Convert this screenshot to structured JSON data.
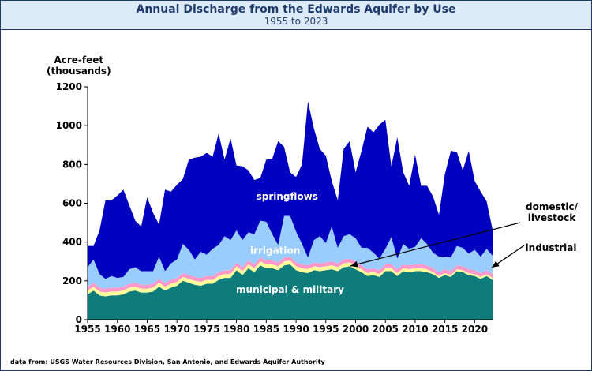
{
  "title": "Annual Discharge from the Edwards Aquifer by Use",
  "subtitle": "1955 to 2023",
  "source_note": "data from:  USGS Water Resources Division, San Antonio, and Edwards Aquifer Authority",
  "colors": {
    "municipal": "#0e7c7b",
    "industrial": "#ffff99",
    "domestic": "#ff99cc",
    "irrigation": "#99ccff",
    "springflows": "#0000c0",
    "frame": "#1f3a6b",
    "header_bg": "#dcebf7"
  },
  "chart_data": {
    "type": "area",
    "stacked": true,
    "ylabel_lines": [
      "Acre-feet",
      "(thousands)"
    ],
    "ylim": [
      0,
      1200
    ],
    "xlim": [
      1955,
      2023
    ],
    "yticks": [
      0,
      200,
      400,
      600,
      800,
      1000,
      1200
    ],
    "xticks": [
      1955,
      1960,
      1965,
      1970,
      1975,
      1980,
      1985,
      1990,
      1995,
      2000,
      2005,
      2010,
      2015,
      2020
    ],
    "grid": false,
    "years": [
      1955,
      1956,
      1957,
      1958,
      1959,
      1960,
      1961,
      1962,
      1963,
      1964,
      1965,
      1966,
      1967,
      1968,
      1969,
      1970,
      1971,
      1972,
      1973,
      1974,
      1975,
      1976,
      1977,
      1978,
      1979,
      1980,
      1981,
      1982,
      1983,
      1984,
      1985,
      1986,
      1987,
      1988,
      1989,
      1990,
      1991,
      1992,
      1993,
      1994,
      1995,
      1996,
      1997,
      1998,
      1999,
      2000,
      2001,
      2002,
      2003,
      2004,
      2005,
      2006,
      2007,
      2008,
      2009,
      2010,
      2011,
      2012,
      2013,
      2014,
      2015,
      2016,
      2017,
      2018,
      2019,
      2020,
      2021,
      2022,
      2023
    ],
    "series": [
      {
        "key": "municipal",
        "name": "municipal & military",
        "values": [
          130,
          150,
          125,
          120,
          125,
          125,
          130,
          145,
          150,
          140,
          140,
          145,
          170,
          150,
          165,
          175,
          200,
          190,
          180,
          175,
          185,
          185,
          205,
          215,
          215,
          255,
          230,
          265,
          245,
          280,
          265,
          265,
          255,
          280,
          285,
          255,
          245,
          240,
          255,
          250,
          255,
          260,
          250,
          270,
          275,
          260,
          245,
          225,
          230,
          220,
          250,
          250,
          225,
          250,
          245,
          250,
          250,
          245,
          235,
          215,
          230,
          220,
          250,
          245,
          230,
          225,
          210,
          225,
          205
        ]
      },
      {
        "key": "industrial",
        "name": "industrial",
        "values": [
          20,
          20,
          20,
          20,
          20,
          20,
          20,
          20,
          20,
          20,
          20,
          20,
          20,
          20,
          20,
          20,
          20,
          20,
          20,
          20,
          20,
          20,
          20,
          20,
          20,
          20,
          20,
          20,
          20,
          20,
          20,
          20,
          20,
          20,
          20,
          20,
          20,
          20,
          20,
          20,
          20,
          20,
          20,
          20,
          20,
          20,
          15,
          15,
          15,
          15,
          15,
          15,
          15,
          15,
          15,
          15,
          15,
          15,
          10,
          10,
          10,
          10,
          10,
          10,
          10,
          10,
          10,
          10,
          10
        ]
      },
      {
        "key": "domestic",
        "name": "domestic/ livestock",
        "values": [
          20,
          20,
          20,
          20,
          20,
          20,
          20,
          20,
          20,
          20,
          20,
          20,
          20,
          20,
          20,
          20,
          20,
          20,
          20,
          20,
          20,
          20,
          20,
          20,
          20,
          20,
          20,
          20,
          20,
          20,
          20,
          20,
          20,
          20,
          20,
          20,
          20,
          20,
          20,
          20,
          20,
          20,
          20,
          20,
          20,
          20,
          20,
          20,
          20,
          20,
          20,
          20,
          20,
          20,
          20,
          20,
          20,
          20,
          20,
          20,
          20,
          20,
          20,
          20,
          20,
          20,
          20,
          20,
          20
        ]
      },
      {
        "key": "irrigation",
        "name": "irrigation",
        "values": [
          100,
          120,
          70,
          50,
          60,
          50,
          50,
          75,
          80,
          70,
          70,
          65,
          115,
          60,
          85,
          95,
          150,
          130,
          90,
          135,
          110,
          140,
          140,
          175,
          155,
          165,
          140,
          145,
          155,
          190,
          200,
          135,
          90,
          215,
          210,
          160,
          105,
          40,
          115,
          140,
          100,
          180,
          80,
          120,
          125,
          120,
          90,
          110,
          80,
          60,
          80,
          140,
          55,
          105,
          85,
          90,
          135,
          110,
          80,
          80,
          65,
          70,
          100,
          95,
          80,
          105,
          85,
          110,
          95
        ]
      },
      {
        "key": "springflows",
        "name": "springflows",
        "values": [
          110,
          70,
          225,
          405,
          390,
          425,
          450,
          330,
          240,
          230,
          380,
          300,
          165,
          420,
          370,
          385,
          335,
          465,
          525,
          490,
          525,
          475,
          575,
          395,
          525,
          335,
          380,
          320,
          280,
          220,
          320,
          390,
          535,
          355,
          225,
          280,
          410,
          805,
          575,
          450,
          450,
          235,
          245,
          450,
          480,
          340,
          500,
          625,
          620,
          690,
          665,
          365,
          625,
          370,
          325,
          475,
          270,
          300,
          290,
          215,
          425,
          550,
          485,
          400,
          530,
          355,
          335,
          245,
          135
        ]
      }
    ],
    "labels": {
      "municipal": "municipal & military",
      "irrigation": "irrigation",
      "springflows": "springflows",
      "domestic_1": "domestic/",
      "domestic_2": "livestock",
      "industrial": "industrial"
    }
  }
}
